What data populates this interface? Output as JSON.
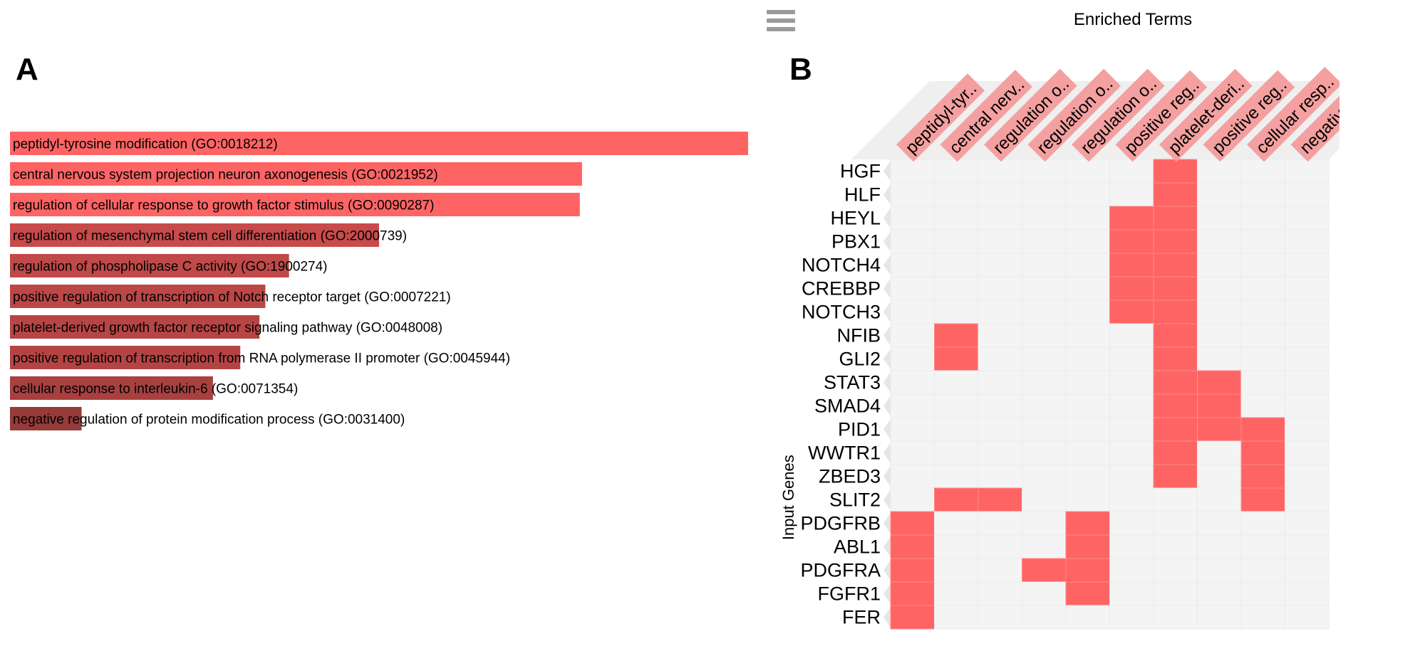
{
  "panels": {
    "a_label": "A",
    "b_label": "B"
  },
  "menu": {
    "icon": "hamburger-menu-icon"
  },
  "colors": {
    "bar_significant": "#ff6464",
    "bar_shades": [
      "#ff6464",
      "#ff6464",
      "#ff6464",
      "#c84b4b",
      "#c04949",
      "#bc4747",
      "#b84545",
      "#b44444",
      "#a84040",
      "#963a3a"
    ],
    "heatmap_on": "#ff6464",
    "heatmap_off": "#f4f4f4",
    "term_label_bg": "#f4a0a0"
  },
  "chart_data": [
    {
      "type": "bar",
      "orientation": "horizontal",
      "categories": [
        "peptidyl-tyrosine modification (GO:0018212)",
        "central nervous system projection neuron axonogenesis (GO:0021952)",
        "regulation of cellular response to growth factor stimulus (GO:0090287)",
        "regulation of mesenchymal stem cell differentiation (GO:2000739)",
        "regulation of phospholipase C activity (GO:1900274)",
        "positive regulation of transcription of Notch receptor target (GO:0007221)",
        "platelet-derived growth factor receptor signaling pathway (GO:0048008)",
        "positive regulation of transcription from RNA polymerase II promoter (GO:0045944)",
        "cellular response to interleukin-6 (GO:0071354)",
        "negative regulation of protein modification process (GO:0031400)"
      ],
      "values": [
        1.0,
        0.775,
        0.772,
        0.5,
        0.378,
        0.346,
        0.338,
        0.312,
        0.275,
        0.097
      ],
      "title": "",
      "xlabel": "",
      "ylabel": "",
      "xlim": [
        0,
        1
      ]
    },
    {
      "type": "heatmap",
      "title": "Enriched Terms",
      "ylabel": "Input Genes",
      "columns": [
        "peptidyl-tyr..",
        "central nerv..",
        "regulation o..",
        "regulation o..",
        "regulation o..",
        "positive reg..",
        "platelet-deri..",
        "positive reg..",
        "cellular resp..",
        "negative re.."
      ],
      "rows": [
        "HGF",
        "HLF",
        "HEYL",
        "PBX1",
        "NOTCH4",
        "CREBBP",
        "NOTCH3",
        "NFIB",
        "GLI2",
        "STAT3",
        "SMAD4",
        "PID1",
        "WWTR1",
        "ZBED3",
        "SLIT2",
        "PDGFRB",
        "ABL1",
        "PDGFRA",
        "FGFR1",
        "FER"
      ],
      "matrix": [
        [
          0,
          0,
          0,
          0,
          0,
          0,
          1,
          0,
          0,
          0
        ],
        [
          0,
          0,
          0,
          0,
          0,
          0,
          1,
          0,
          0,
          0
        ],
        [
          0,
          0,
          0,
          0,
          0,
          1,
          1,
          0,
          0,
          0
        ],
        [
          0,
          0,
          0,
          0,
          0,
          1,
          1,
          0,
          0,
          0
        ],
        [
          0,
          0,
          0,
          0,
          0,
          1,
          1,
          0,
          0,
          0
        ],
        [
          0,
          0,
          0,
          0,
          0,
          1,
          1,
          0,
          0,
          0
        ],
        [
          0,
          0,
          0,
          0,
          0,
          1,
          1,
          0,
          0,
          0
        ],
        [
          0,
          1,
          0,
          0,
          0,
          0,
          1,
          0,
          0,
          0
        ],
        [
          0,
          1,
          0,
          0,
          0,
          0,
          1,
          0,
          0,
          0
        ],
        [
          0,
          0,
          0,
          0,
          0,
          0,
          1,
          1,
          0,
          0
        ],
        [
          0,
          0,
          0,
          0,
          0,
          0,
          1,
          1,
          0,
          0
        ],
        [
          0,
          0,
          0,
          0,
          0,
          0,
          1,
          1,
          1,
          0
        ],
        [
          0,
          0,
          0,
          0,
          0,
          0,
          1,
          0,
          1,
          0
        ],
        [
          0,
          0,
          0,
          0,
          0,
          0,
          1,
          0,
          1,
          0
        ],
        [
          0,
          1,
          1,
          0,
          0,
          0,
          0,
          0,
          1,
          0
        ],
        [
          1,
          0,
          0,
          0,
          1,
          0,
          0,
          0,
          0,
          0
        ],
        [
          1,
          0,
          0,
          0,
          1,
          0,
          0,
          0,
          0,
          0
        ],
        [
          1,
          0,
          0,
          1,
          1,
          0,
          0,
          0,
          0,
          0
        ],
        [
          1,
          0,
          0,
          0,
          1,
          0,
          0,
          0,
          0,
          0
        ],
        [
          1,
          0,
          0,
          0,
          0,
          0,
          0,
          0,
          0,
          0
        ]
      ]
    }
  ]
}
